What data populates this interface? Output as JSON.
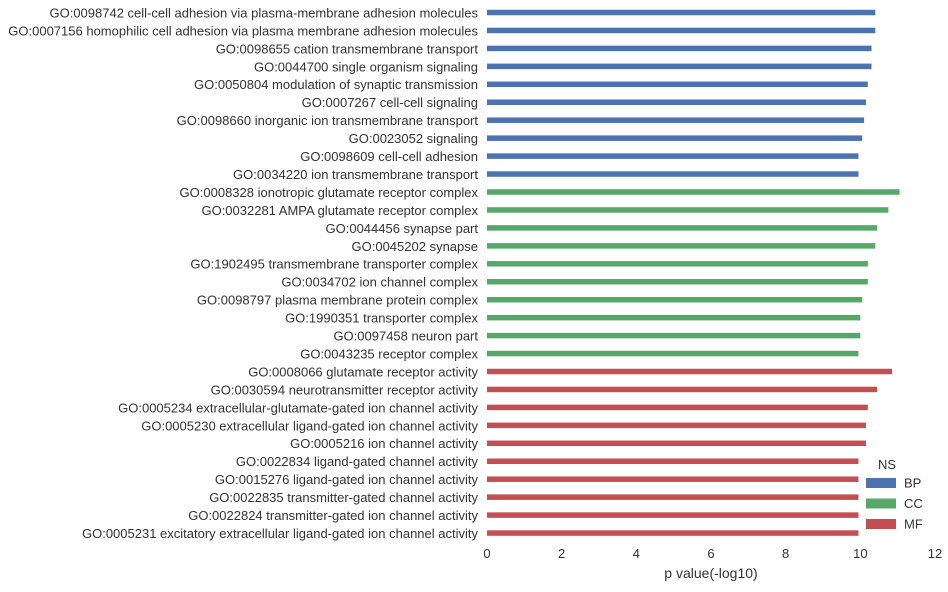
{
  "chart_data": {
    "type": "bar",
    "orientation": "horizontal",
    "xlabel": "p value(-log10)",
    "ylabel": "",
    "xlim": [
      0,
      12
    ],
    "xticks": [
      0,
      2,
      4,
      6,
      8,
      10,
      12
    ],
    "grid": false,
    "legend": {
      "title": "NS",
      "placement": "bottom-right",
      "entries": [
        {
          "name": "BP",
          "color": "#4c72b0"
        },
        {
          "name": "CC",
          "color": "#55a868"
        },
        {
          "name": "MF",
          "color": "#c44e52"
        }
      ]
    },
    "categories": [
      "GO:0098742 cell-cell adhesion via plasma-membrane adhesion molecules",
      "GO:0007156 homophilic cell adhesion via plasma membrane adhesion molecules",
      "GO:0098655 cation transmembrane transport",
      "GO:0044700 single organism signaling",
      "GO:0050804 modulation of synaptic transmission",
      "GO:0007267 cell-cell signaling",
      "GO:0098660 inorganic ion transmembrane transport",
      "GO:0023052 signaling",
      "GO:0098609 cell-cell adhesion",
      "GO:0034220 ion transmembrane transport",
      "GO:0008328 ionotropic glutamate receptor complex",
      "GO:0032281 AMPA glutamate receptor complex",
      "GO:0044456 synapse part",
      "GO:0045202 synapse",
      "GO:1902495 transmembrane transporter complex",
      "GO:0034702 ion channel complex",
      "GO:0098797 plasma membrane protein complex",
      "GO:1990351 transporter complex",
      "GO:0097458 neuron part",
      "GO:0043235 receptor complex",
      "GO:0008066 glutamate receptor activity",
      "GO:0030594 neurotransmitter receptor activity",
      "GO:0005234 extracellular-glutamate-gated ion channel activity",
      "GO:0005230 extracellular ligand-gated ion channel activity",
      "GO:0005216 ion channel activity",
      "GO:0022834 ligand-gated channel activity",
      "GO:0015276 ligand-gated ion channel activity",
      "GO:0022835 transmitter-gated channel activity",
      "GO:0022824 transmitter-gated ion channel activity",
      "GO:0005231 excitatory extracellular ligand-gated ion channel activity"
    ],
    "groups": [
      "BP",
      "BP",
      "BP",
      "BP",
      "BP",
      "BP",
      "BP",
      "BP",
      "BP",
      "BP",
      "CC",
      "CC",
      "CC",
      "CC",
      "CC",
      "CC",
      "CC",
      "CC",
      "CC",
      "CC",
      "MF",
      "MF",
      "MF",
      "MF",
      "MF",
      "MF",
      "MF",
      "MF",
      "MF",
      "MF"
    ],
    "values": [
      10.4,
      10.4,
      10.3,
      10.3,
      10.2,
      10.15,
      10.1,
      10.05,
      9.95,
      9.95,
      11.05,
      10.75,
      10.45,
      10.4,
      10.2,
      10.2,
      10.05,
      10.0,
      10.0,
      9.95,
      10.85,
      10.45,
      10.2,
      10.15,
      10.15,
      9.95,
      9.95,
      9.95,
      9.95,
      9.95
    ]
  }
}
